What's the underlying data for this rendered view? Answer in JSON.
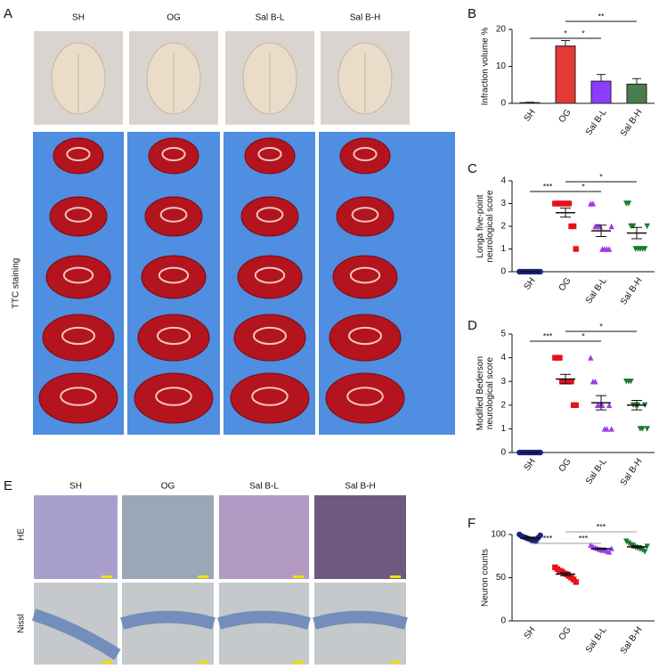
{
  "figure": {
    "panel_labels": [
      "A",
      "B",
      "C",
      "D",
      "E",
      "F"
    ],
    "photo_columns": [
      "SH",
      "OG",
      "Sal B-L",
      "Sal B-H"
    ],
    "photo_rows": [
      "TTC staining",
      "HE",
      "Nissl"
    ]
  },
  "chart_data": [
    {
      "type": "bar",
      "categories": [
        "SH",
        "OG",
        "Sal B-L",
        "Sal B-H"
      ],
      "values": [
        0.2,
        15.5,
        6,
        5.2
      ],
      "errors": [
        0.1,
        1.5,
        1.8,
        1.5
      ],
      "colors": [
        "#1a237e",
        "#e53935",
        "#8b3dff",
        "#4a7c4e"
      ],
      "y_label": [
        "Infraction volume %"
      ],
      "ylim": [
        0,
        20
      ],
      "yticks": [
        0,
        10,
        20
      ],
      "annotations": [
        "*",
        "*",
        "**"
      ]
    },
    {
      "type": "strip",
      "categories": [
        "SH",
        "OG",
        "Sal B-L",
        "Sal B-H"
      ],
      "groups": [
        [
          0,
          0,
          0,
          0,
          0,
          0,
          0,
          0,
          0,
          0
        ],
        [
          3,
          3,
          3,
          3,
          3,
          3,
          3,
          2,
          2,
          1
        ],
        [
          3,
          3,
          2,
          2,
          2,
          1,
          1,
          1,
          1,
          2
        ],
        [
          3,
          3,
          2,
          2,
          1,
          1,
          1,
          1,
          1,
          2
        ]
      ],
      "means": [
        0,
        2.6,
        1.8,
        1.7
      ],
      "errors": [
        0,
        0.2,
        0.25,
        0.25
      ],
      "colors": [
        "#1a237e",
        "#e8101a",
        "#9b3dea",
        "#1e7b30"
      ],
      "markers": [
        "circle",
        "square",
        "triangle",
        "triangle-down"
      ],
      "y_label": [
        "Longa five-point",
        "neurological score"
      ],
      "ylim": [
        0,
        4
      ],
      "yticks": [
        0,
        1,
        2,
        3,
        4
      ],
      "annotations": [
        "***",
        "*",
        "*"
      ]
    },
    {
      "type": "strip",
      "categories": [
        "SH",
        "OG",
        "Sal B-L",
        "Sal B-H"
      ],
      "groups": [
        [
          0,
          0,
          0,
          0,
          0,
          0,
          0,
          0,
          0,
          0
        ],
        [
          4,
          4,
          4,
          3,
          3,
          3,
          3,
          3,
          2,
          2
        ],
        [
          4,
          3,
          3,
          2,
          2,
          2,
          1,
          1,
          2,
          1
        ],
        [
          3,
          3,
          3,
          2,
          2,
          2,
          1,
          1,
          2,
          1
        ]
      ],
      "means": [
        0,
        3.1,
        2.1,
        2.0
      ],
      "errors": [
        0,
        0.2,
        0.3,
        0.2
      ],
      "colors": [
        "#1a237e",
        "#e8101a",
        "#9b3dea",
        "#1e7b30"
      ],
      "markers": [
        "circle",
        "square",
        "triangle",
        "triangle-down"
      ],
      "y_label": [
        "Modified Bederson",
        "neurological score"
      ],
      "ylim": [
        0,
        5
      ],
      "yticks": [
        0,
        1,
        2,
        3,
        4,
        5
      ],
      "annotations": [
        "***",
        "*",
        "*"
      ]
    },
    {
      "type": "strip",
      "categories": [
        "SH",
        "OG",
        "Sal B-L",
        "Sal B-H"
      ],
      "groups": [
        [
          100,
          98,
          97,
          96,
          95,
          94,
          93,
          92,
          96,
          99
        ],
        [
          62,
          60,
          58,
          57,
          55,
          54,
          52,
          50,
          48,
          45
        ],
        [
          88,
          86,
          85,
          84,
          83,
          82,
          82,
          81,
          80,
          84
        ],
        [
          92,
          90,
          88,
          87,
          85,
          84,
          83,
          82,
          80,
          86
        ]
      ],
      "means": [
        96,
        54.1,
        83.5,
        85.7
      ],
      "errors": [
        1,
        1.8,
        0.8,
        1.2
      ],
      "colors": [
        "#1a237e",
        "#e8101a",
        "#9b3dea",
        "#1e7b30"
      ],
      "markers": [
        "circle",
        "square",
        "triangle",
        "triangle-down"
      ],
      "y_label": [
        "Neuron counts"
      ],
      "ylim": [
        0,
        100
      ],
      "yticks": [
        0,
        50,
        100
      ],
      "annotations": [
        "***",
        "***",
        "***"
      ]
    }
  ]
}
